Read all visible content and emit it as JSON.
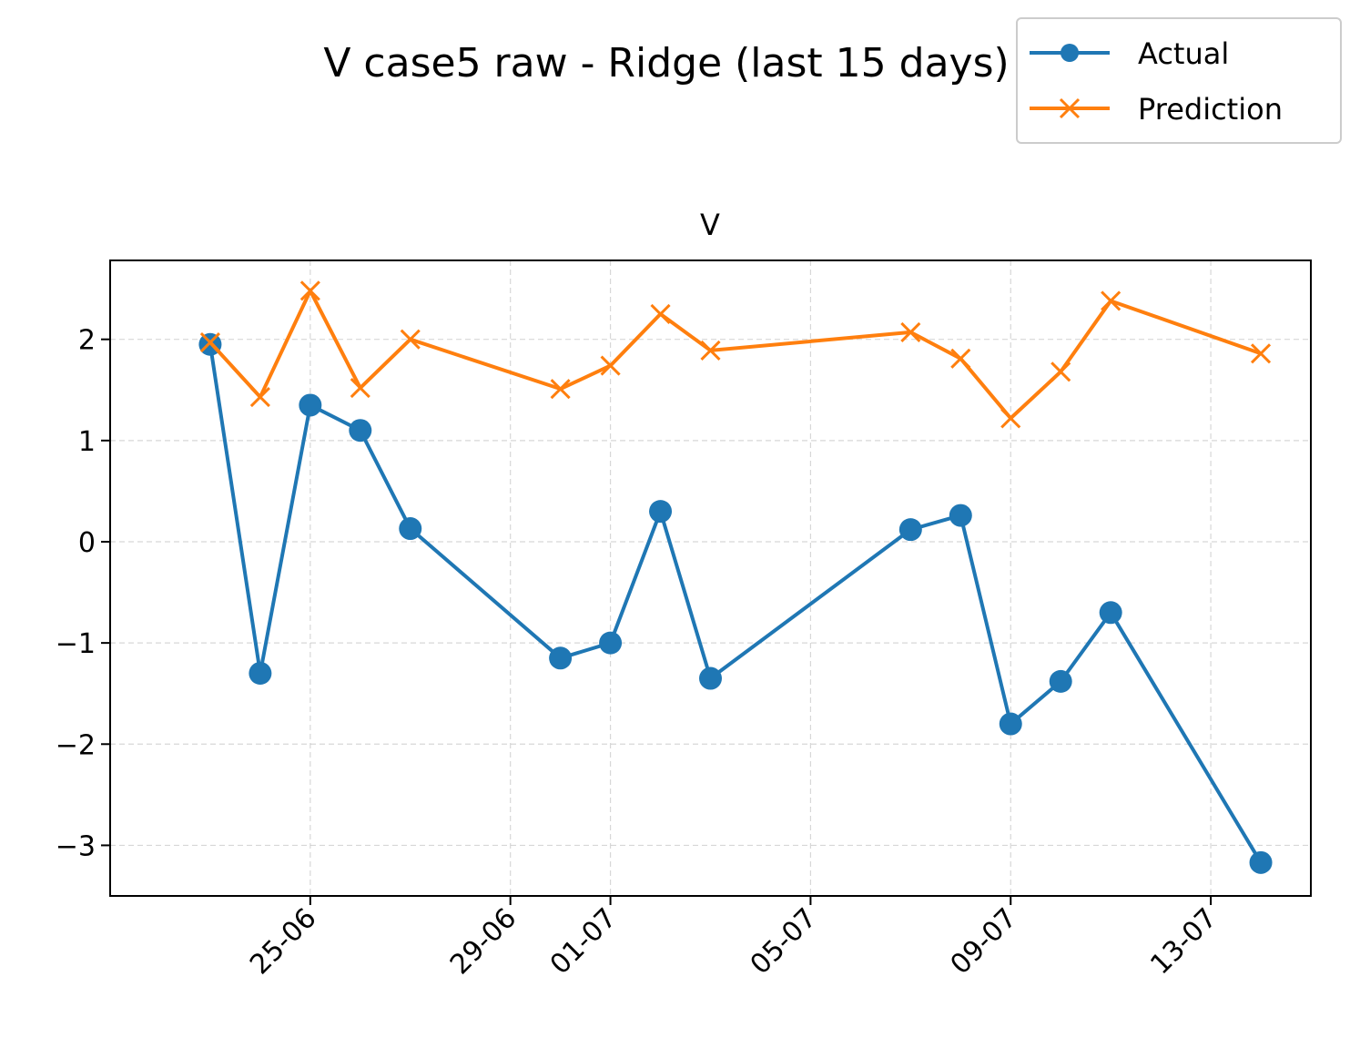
{
  "chart_data": {
    "type": "line",
    "suptitle": "V case5 raw - Ridge (last 15 days)",
    "title": "V",
    "xlabel": "",
    "ylabel": "",
    "x_ticks": [
      "25-06",
      "29-06",
      "01-07",
      "05-07",
      "09-07",
      "13-07"
    ],
    "y_ticks": [
      "2",
      "1",
      "0",
      "−1",
      "−2",
      "−3"
    ],
    "y_tick_values": [
      2,
      1,
      0,
      -1,
      -2,
      -3
    ],
    "ylim": [
      -3.5,
      2.78
    ],
    "xlim": [
      "2025-06-21",
      "2025-07-15"
    ],
    "grid": true,
    "legend_position": "top-right",
    "x": [
      "2025-06-23",
      "2025-06-24",
      "2025-06-25",
      "2025-06-26",
      "2025-06-27",
      "2025-06-30",
      "2025-07-01",
      "2025-07-02",
      "2025-07-03",
      "2025-07-07",
      "2025-07-08",
      "2025-07-09",
      "2025-07-10",
      "2025-07-11",
      "2025-07-14"
    ],
    "series": [
      {
        "name": "Actual",
        "color": "#1f77b4",
        "marker": "circle",
        "values": [
          1.95,
          -1.3,
          1.35,
          1.1,
          0.13,
          -1.15,
          -1.0,
          0.3,
          -1.35,
          0.12,
          0.26,
          -1.8,
          -1.38,
          -0.7,
          -3.17
        ]
      },
      {
        "name": "Prediction",
        "color": "#ff7f0e",
        "marker": "x",
        "values": [
          1.97,
          1.43,
          2.48,
          1.52,
          2.0,
          1.51,
          1.74,
          2.25,
          1.89,
          2.07,
          1.81,
          1.22,
          1.68,
          2.38,
          1.86
        ]
      }
    ]
  }
}
